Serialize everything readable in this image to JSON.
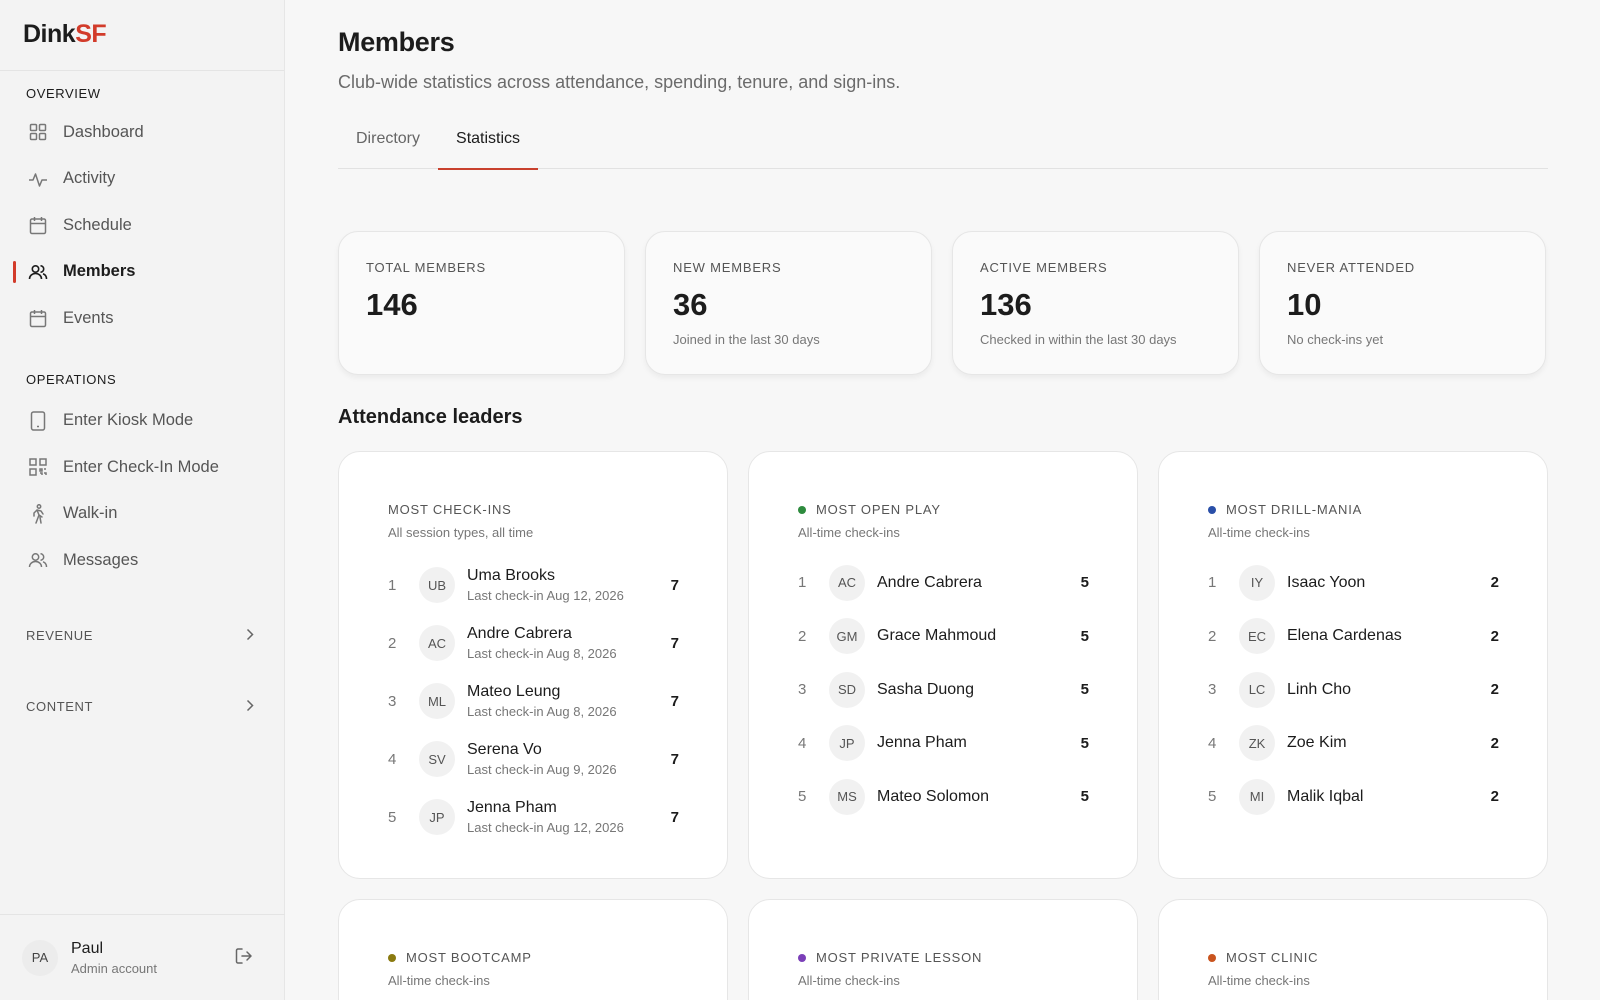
{
  "brand": {
    "prefix": "Dink",
    "suffix": "SF"
  },
  "colors": {
    "accent": "#d23b2a",
    "open_play": "#2e8b3e",
    "drill_mania": "#2a4fa8",
    "bootcamp": "#8a7a10",
    "private_lesson": "#7b3fb8",
    "clinic": "#c9541e"
  },
  "sidebar": {
    "overview_label": "OVERVIEW",
    "overview_items": [
      {
        "label": "Dashboard",
        "icon": "grid-icon"
      },
      {
        "label": "Activity",
        "icon": "activity-icon"
      },
      {
        "label": "Schedule",
        "icon": "calendar-icon"
      },
      {
        "label": "Members",
        "icon": "users-icon",
        "active": true
      },
      {
        "label": "Events",
        "icon": "calendar-icon"
      }
    ],
    "operations_label": "OPERATIONS",
    "operations_items": [
      {
        "label": "Enter Kiosk Mode",
        "icon": "tablet-icon"
      },
      {
        "label": "Enter Check-In Mode",
        "icon": "qr-icon"
      },
      {
        "label": "Walk-in",
        "icon": "walking-icon"
      },
      {
        "label": "Messages",
        "icon": "users-icon"
      }
    ],
    "revenue_label": "REVENUE",
    "content_label": "CONTENT",
    "user": {
      "initials": "PA",
      "name": "Paul",
      "role": "Admin account"
    }
  },
  "page": {
    "title": "Members",
    "subtitle": "Club-wide statistics across attendance, spending, tenure, and sign-ins.",
    "tabs": [
      "Directory",
      "Statistics"
    ],
    "active_tab": "Statistics"
  },
  "stats": [
    {
      "label": "TOTAL MEMBERS",
      "value": "146",
      "desc": ""
    },
    {
      "label": "NEW MEMBERS",
      "value": "36",
      "desc": "Joined in the last 30 days"
    },
    {
      "label": "ACTIVE MEMBERS",
      "value": "136",
      "desc": "Checked in within the last 30 days"
    },
    {
      "label": "NEVER ATTENDED",
      "value": "10",
      "desc": "No check-ins yet"
    }
  ],
  "leaders_title": "Attendance leaders",
  "leaders": [
    {
      "title": "MOST CHECK-INS",
      "subtitle": "All session types, all time",
      "dot": "",
      "rows": [
        {
          "rank": "1",
          "initials": "UB",
          "name": "Uma Brooks",
          "sub": "Last check-in Aug 12, 2026",
          "count": "7"
        },
        {
          "rank": "2",
          "initials": "AC",
          "name": "Andre Cabrera",
          "sub": "Last check-in Aug 8, 2026",
          "count": "7"
        },
        {
          "rank": "3",
          "initials": "ML",
          "name": "Mateo Leung",
          "sub": "Last check-in Aug 8, 2026",
          "count": "7"
        },
        {
          "rank": "4",
          "initials": "SV",
          "name": "Serena Vo",
          "sub": "Last check-in Aug 9, 2026",
          "count": "7"
        },
        {
          "rank": "5",
          "initials": "JP",
          "name": "Jenna Pham",
          "sub": "Last check-in Aug 12, 2026",
          "count": "7"
        }
      ]
    },
    {
      "title": "MOST OPEN PLAY",
      "subtitle": "All-time check-ins",
      "dot": "#2e8b3e",
      "rows": [
        {
          "rank": "1",
          "initials": "AC",
          "name": "Andre Cabrera",
          "sub": "",
          "count": "5"
        },
        {
          "rank": "2",
          "initials": "GM",
          "name": "Grace Mahmoud",
          "sub": "",
          "count": "5"
        },
        {
          "rank": "3",
          "initials": "SD",
          "name": "Sasha Duong",
          "sub": "",
          "count": "5"
        },
        {
          "rank": "4",
          "initials": "JP",
          "name": "Jenna Pham",
          "sub": "",
          "count": "5"
        },
        {
          "rank": "5",
          "initials": "MS",
          "name": "Mateo Solomon",
          "sub": "",
          "count": "5"
        }
      ]
    },
    {
      "title": "MOST DRILL-MANIA",
      "subtitle": "All-time check-ins",
      "dot": "#2a4fa8",
      "rows": [
        {
          "rank": "1",
          "initials": "IY",
          "name": "Isaac Yoon",
          "sub": "",
          "count": "2"
        },
        {
          "rank": "2",
          "initials": "EC",
          "name": "Elena Cardenas",
          "sub": "",
          "count": "2"
        },
        {
          "rank": "3",
          "initials": "LC",
          "name": "Linh Cho",
          "sub": "",
          "count": "2"
        },
        {
          "rank": "4",
          "initials": "ZK",
          "name": "Zoe Kim",
          "sub": "",
          "count": "2"
        },
        {
          "rank": "5",
          "initials": "MI",
          "name": "Malik Iqbal",
          "sub": "",
          "count": "2"
        }
      ]
    },
    {
      "title": "MOST BOOTCAMP",
      "subtitle": "All-time check-ins",
      "dot": "#8a7a10",
      "rows": []
    },
    {
      "title": "MOST PRIVATE LESSON",
      "subtitle": "All-time check-ins",
      "dot": "#7b3fb8",
      "rows": []
    },
    {
      "title": "MOST CLINIC",
      "subtitle": "All-time check-ins",
      "dot": "#c9541e",
      "rows": []
    }
  ]
}
